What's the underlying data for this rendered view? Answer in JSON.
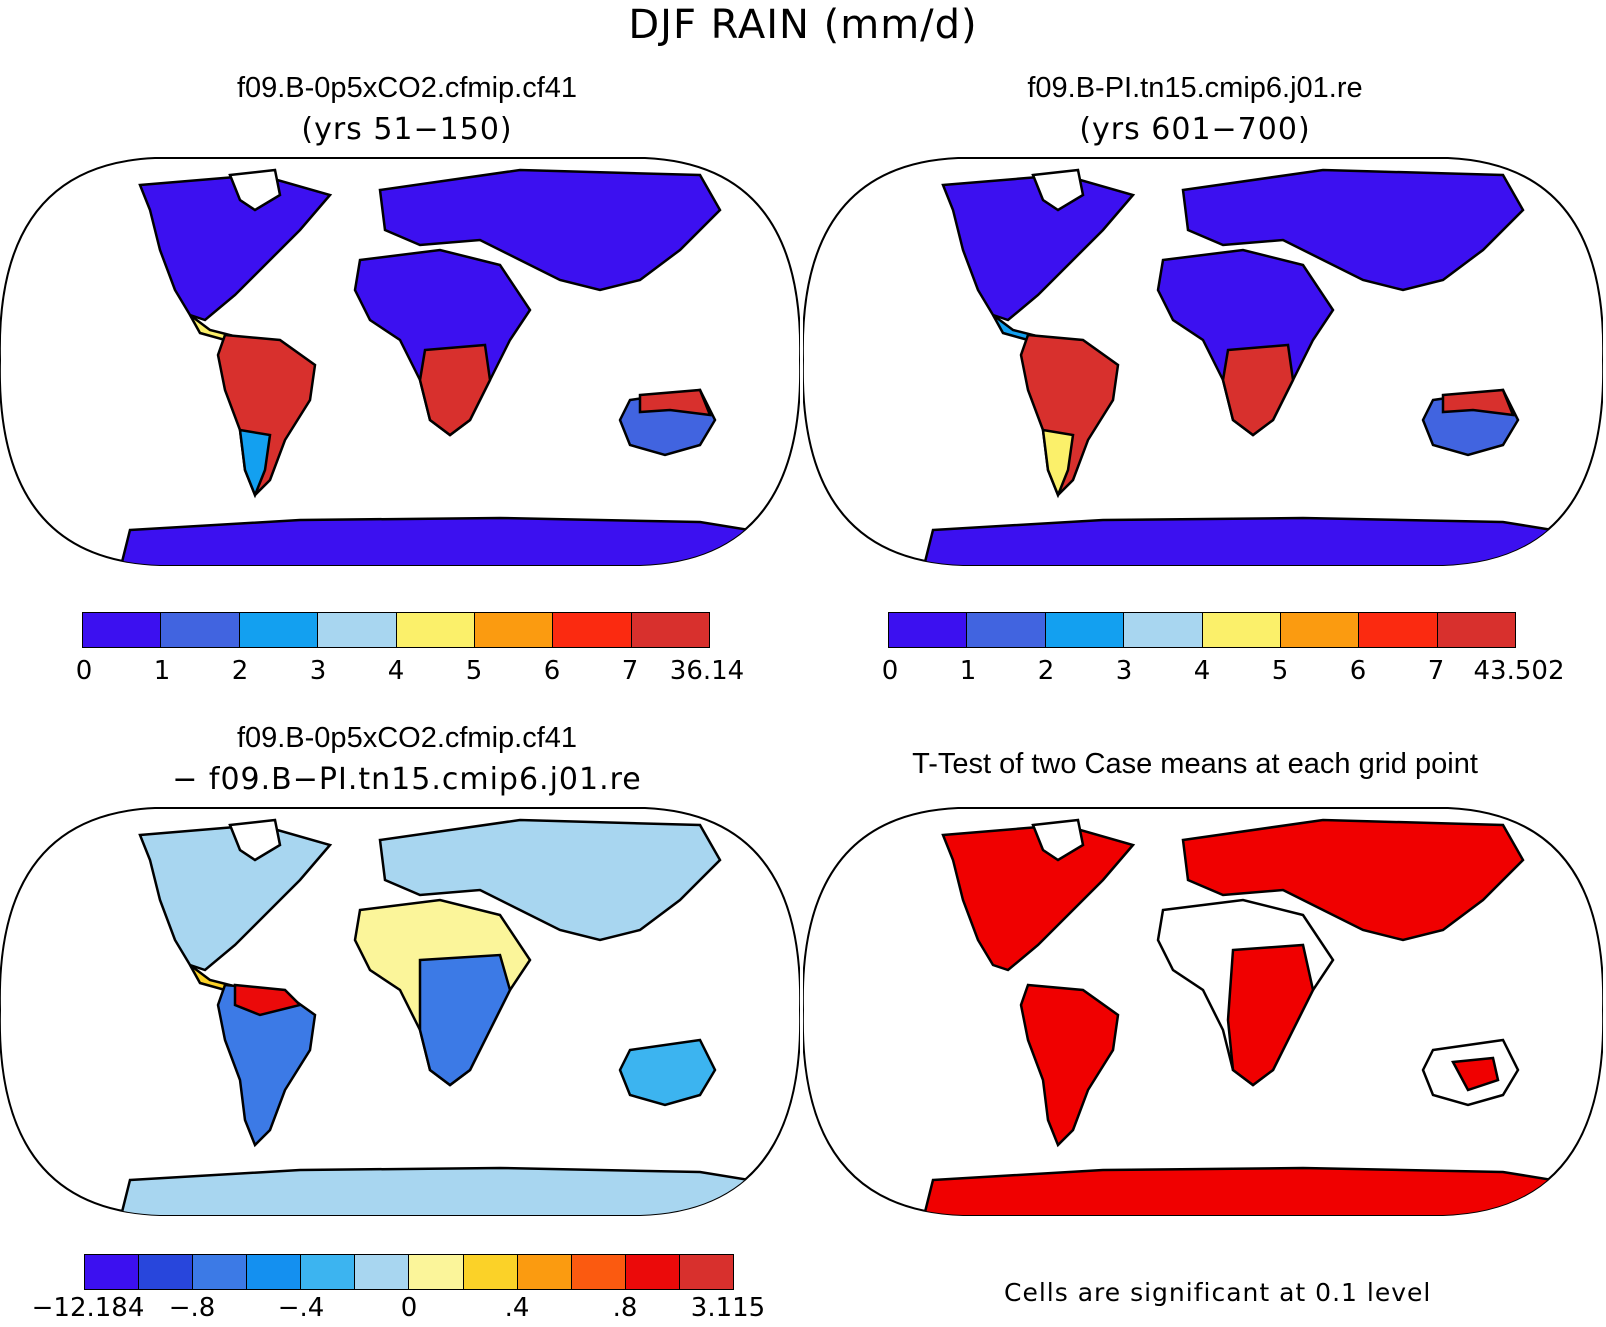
{
  "title": "DJF RAIN (mm/d)",
  "panels": {
    "case1": {
      "title": "f09.B-0p5xCO2.cfmip.cf41",
      "subtitle": "(yrs 51−150)",
      "colorbar": {
        "colors": [
          "#3c10f0",
          "#4164e0",
          "#13a0f0",
          "#a8d6f0",
          "#fbf06a",
          "#fb9b10",
          "#fb2a10",
          "#d8302d"
        ],
        "labels": [
          "0",
          "1",
          "2",
          "3",
          "4",
          "5",
          "6",
          "7",
          "36.14"
        ]
      }
    },
    "case2": {
      "title": "f09.B-PI.tn15.cmip6.j01.re",
      "subtitle": "(yrs 601−700)",
      "colorbar": {
        "colors": [
          "#3c10f0",
          "#4164e0",
          "#13a0f0",
          "#a8d6f0",
          "#fbf06a",
          "#fb9b10",
          "#fb2a10",
          "#d8302d"
        ],
        "labels": [
          "0",
          "1",
          "2",
          "3",
          "4",
          "5",
          "6",
          "7",
          "43.502"
        ]
      }
    },
    "diff": {
      "title": "f09.B-0p5xCO2.cfmip.cf41",
      "subtitle": "− f09.B−PI.tn15.cmip6.j01.re",
      "colorbar": {
        "colors": [
          "#3c10f0",
          "#2846dc",
          "#3c7ae6",
          "#1490f0",
          "#3cb4f0",
          "#a8d6f0",
          "#fbf59a",
          "#fbd228",
          "#fb9b10",
          "#fb5a10",
          "#eb0a0a",
          "#d8302d"
        ],
        "labels": [
          "−12.184",
          "−.8",
          "−.4",
          "0",
          ".4",
          ".8",
          "3.115"
        ]
      }
    },
    "ttest": {
      "title": "T-Test of two Case means at each grid point",
      "footnote": "Cells are significant at 0.1 level",
      "fill_color": "#f00000"
    }
  }
}
